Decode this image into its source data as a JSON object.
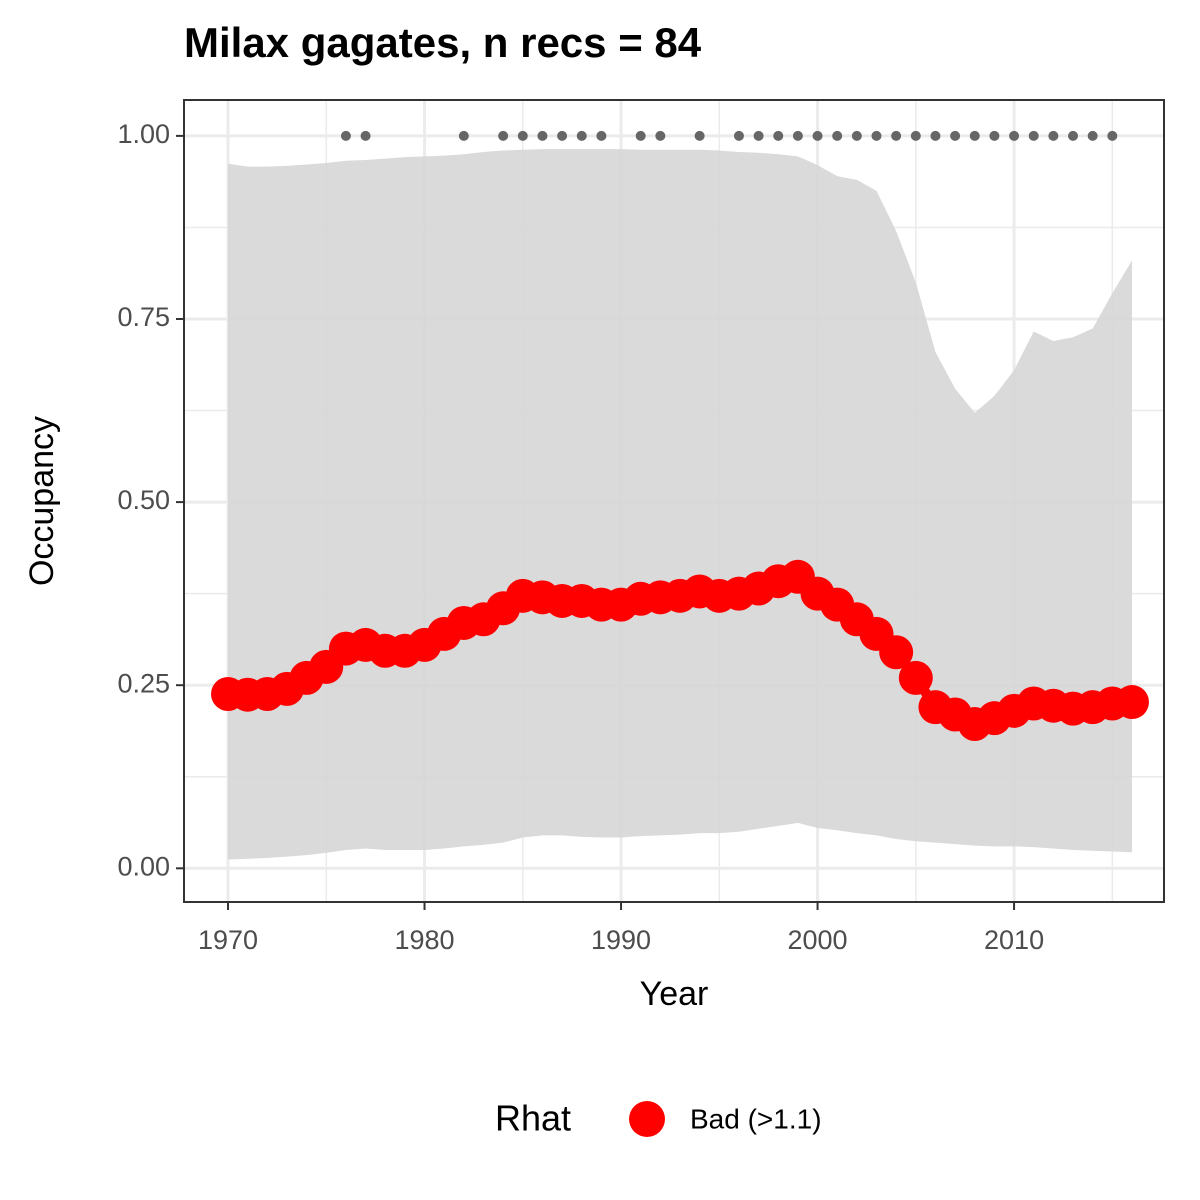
{
  "chart_data": {
    "type": "line",
    "title": "Milax gagates, n recs = 84",
    "x_label": "Year",
    "y_label": "Occupancy",
    "legend_title": "Rhat",
    "legend_position": "bottom",
    "x": [
      1970,
      1971,
      1972,
      1973,
      1974,
      1975,
      1976,
      1977,
      1978,
      1979,
      1980,
      1981,
      1982,
      1983,
      1984,
      1985,
      1986,
      1987,
      1988,
      1989,
      1990,
      1991,
      1992,
      1993,
      1994,
      1995,
      1996,
      1997,
      1998,
      1999,
      2000,
      2001,
      2002,
      2003,
      2004,
      2005,
      2006,
      2007,
      2008,
      2009,
      2010,
      2011,
      2012,
      2013,
      2014,
      2015,
      2016
    ],
    "series": [
      {
        "name": "Bad (>1.1)",
        "color": "#ff0000",
        "values": [
          0.238,
          0.237,
          0.238,
          0.245,
          0.26,
          0.275,
          0.3,
          0.305,
          0.297,
          0.297,
          0.305,
          0.32,
          0.335,
          0.34,
          0.355,
          0.372,
          0.37,
          0.365,
          0.365,
          0.36,
          0.36,
          0.368,
          0.37,
          0.372,
          0.378,
          0.372,
          0.375,
          0.382,
          0.392,
          0.398,
          0.375,
          0.36,
          0.34,
          0.32,
          0.295,
          0.26,
          0.22,
          0.21,
          0.197,
          0.205,
          0.215,
          0.225,
          0.222,
          0.218,
          0.22,
          0.225,
          0.227
        ]
      }
    ],
    "band": {
      "color": "#d6d6d6",
      "upper": [
        0.962,
        0.958,
        0.958,
        0.959,
        0.961,
        0.963,
        0.966,
        0.967,
        0.969,
        0.971,
        0.972,
        0.973,
        0.975,
        0.978,
        0.98,
        0.981,
        0.982,
        0.982,
        0.982,
        0.982,
        0.982,
        0.981,
        0.981,
        0.981,
        0.981,
        0.98,
        0.978,
        0.977,
        0.975,
        0.972,
        0.96,
        0.945,
        0.94,
        0.925,
        0.87,
        0.8,
        0.705,
        0.655,
        0.622,
        0.645,
        0.68,
        0.733,
        0.72,
        0.725,
        0.737,
        0.785,
        0.83
      ],
      "lower": [
        0.012,
        0.013,
        0.014,
        0.016,
        0.018,
        0.021,
        0.025,
        0.027,
        0.025,
        0.025,
        0.025,
        0.027,
        0.03,
        0.032,
        0.035,
        0.042,
        0.045,
        0.045,
        0.043,
        0.042,
        0.042,
        0.044,
        0.045,
        0.046,
        0.048,
        0.048,
        0.05,
        0.054,
        0.058,
        0.062,
        0.055,
        0.052,
        0.048,
        0.045,
        0.04,
        0.037,
        0.035,
        0.033,
        0.031,
        0.03,
        0.03,
        0.029,
        0.027,
        0.025,
        0.024,
        0.023,
        0.022
      ]
    },
    "records": {
      "color": "#666666",
      "x": [
        1976,
        1977,
        1982,
        1984,
        1985,
        1986,
        1987,
        1988,
        1989,
        1991,
        1992,
        1994,
        1996,
        1997,
        1998,
        1999,
        2000,
        2001,
        2002,
        2003,
        2004,
        2005,
        2006,
        2007,
        2008,
        2009,
        2010,
        2011,
        2012,
        2013,
        2014,
        2015
      ],
      "values": [
        1,
        1,
        1,
        1,
        1,
        1,
        1,
        1,
        1,
        1,
        1,
        1,
        1,
        1,
        1,
        1,
        1,
        1,
        1,
        1,
        1,
        1,
        1,
        1,
        1,
        1,
        1,
        1,
        1,
        1,
        1,
        1
      ]
    },
    "xlim": [
      1967.76,
      2017.63
    ],
    "ylim": [
      -0.046,
      1.049
    ],
    "xticks": [
      1970,
      1980,
      1990,
      2000,
      2010
    ],
    "yticks": [
      {
        "value": 0,
        "label": "0.00"
      },
      {
        "value": 0.25,
        "label": "0.25"
      },
      {
        "value": 0.5,
        "label": "0.50"
      },
      {
        "value": 0.75,
        "label": "0.75"
      },
      {
        "value": 1,
        "label": "1.00"
      }
    ],
    "minor_xticks": [
      1975,
      1985,
      1995,
      2005,
      2015
    ],
    "minor_yticks": [
      0.125,
      0.375,
      0.625,
      0.875
    ],
    "grid": true
  }
}
